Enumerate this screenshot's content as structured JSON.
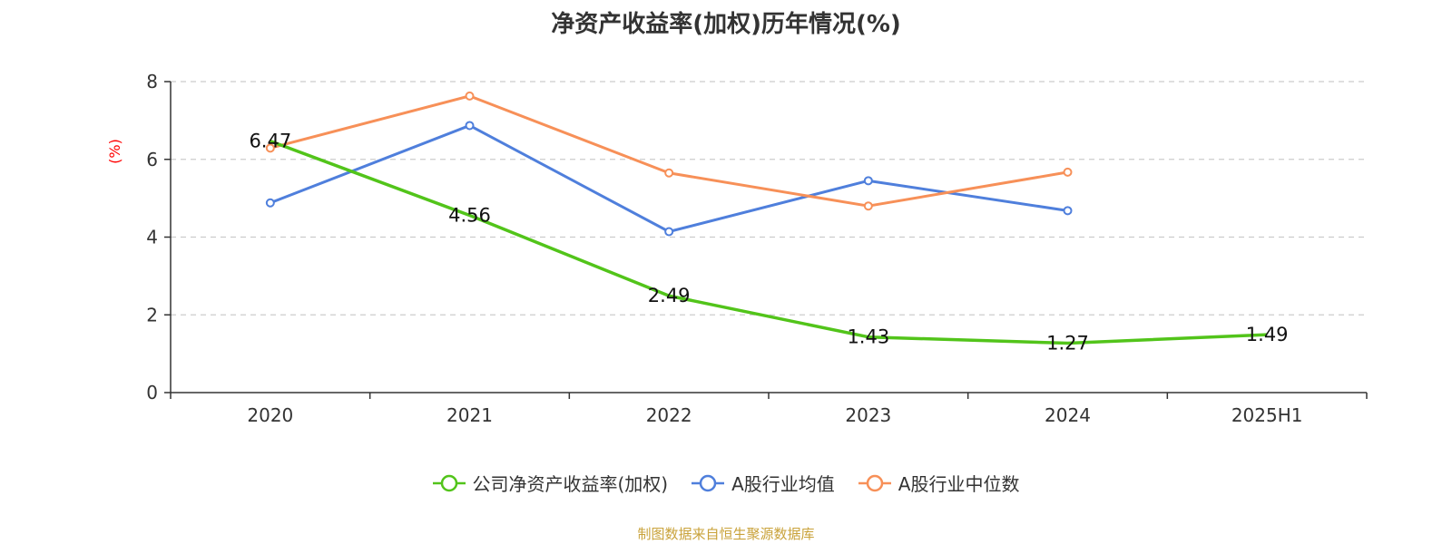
{
  "chart_data": {
    "type": "line",
    "title": "净资产收益率(加权)历年情况(%)",
    "ylabel": "(%)",
    "xlabel": "",
    "ylim": [
      0,
      8
    ],
    "yticks": [
      0,
      2,
      4,
      6,
      8
    ],
    "grid": true,
    "legend_position": "bottom",
    "categories": [
      "2020",
      "2021",
      "2022",
      "2023",
      "2024",
      "2025H1"
    ],
    "series": [
      {
        "name": "公司净资产收益率(加权)",
        "color": "#52c41a",
        "values": [
          6.47,
          4.56,
          2.49,
          1.43,
          1.27,
          1.49
        ],
        "labels": [
          "6.47",
          "4.56",
          "2.49",
          "1.43",
          "1.27",
          "1.49"
        ],
        "show_labels": true,
        "show_points": false
      },
      {
        "name": "A股行业均值",
        "color": "#4f7fdc",
        "values": [
          4.88,
          6.87,
          4.14,
          5.45,
          4.68,
          null
        ],
        "show_labels": false,
        "show_points": true
      },
      {
        "name": "A股行业中位数",
        "color": "#f79058",
        "values": [
          6.29,
          7.63,
          5.65,
          4.8,
          5.67,
          null
        ],
        "show_labels": false,
        "show_points": true
      }
    ],
    "ylabel_color": "#ff0000",
    "source": "制图数据来自恒生聚源数据库"
  }
}
